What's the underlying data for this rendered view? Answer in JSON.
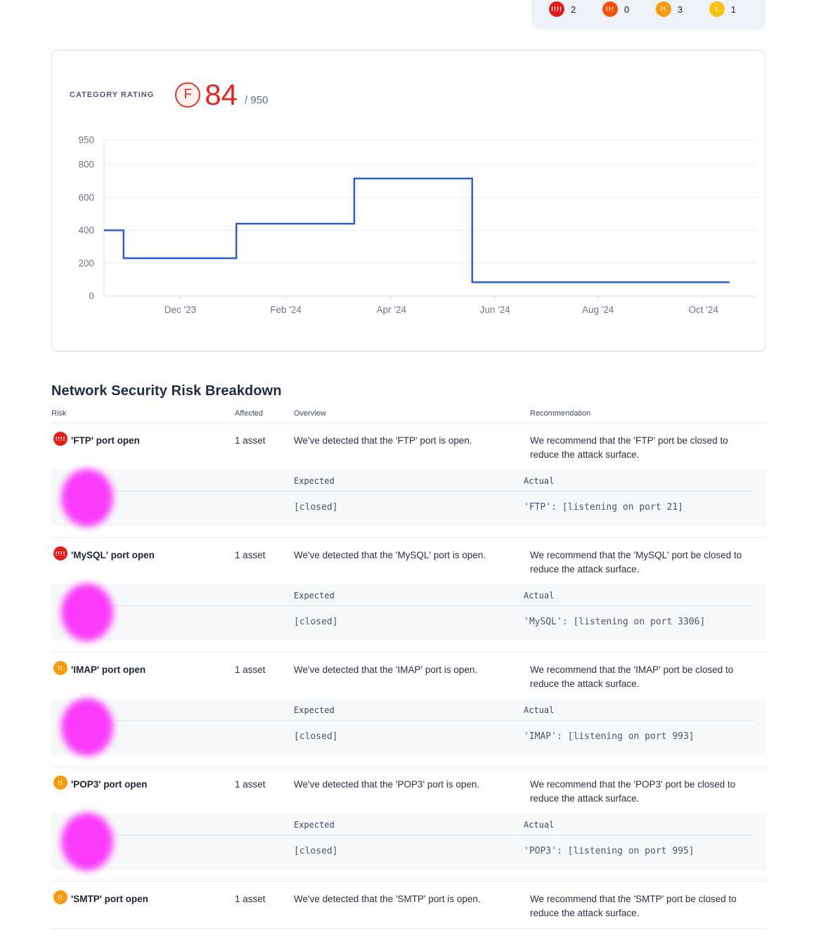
{
  "summary": {
    "badges": [
      {
        "severity": "critical",
        "glyph": "!!!!",
        "count": "2",
        "color": "#e11d1c"
      },
      {
        "severity": "high",
        "glyph": "!!!",
        "count": "0",
        "color": "#f4500b"
      },
      {
        "severity": "medium",
        "glyph": "!!",
        "count": "3",
        "color": "#f79c11"
      },
      {
        "severity": "low",
        "glyph": "!",
        "count": "1",
        "color": "#f6c411"
      }
    ]
  },
  "rating_card": {
    "label": "CATEGORY RATING",
    "grade": "F",
    "score": "84",
    "max": "/ 950"
  },
  "chart_data": {
    "type": "line",
    "title": "Category rating over time",
    "line_color": "#2a5ed0",
    "ylim": [
      0,
      950
    ],
    "yticks": [
      0,
      200,
      400,
      600,
      800,
      950
    ],
    "xticks": [
      {
        "label": "Dec '23",
        "pos": 0.117
      },
      {
        "label": "Feb '24",
        "pos": 0.279
      },
      {
        "label": "Apr '24",
        "pos": 0.441
      },
      {
        "label": "Jun '24",
        "pos": 0.6
      },
      {
        "label": "Aug '24",
        "pos": 0.758
      },
      {
        "label": "Oct '24",
        "pos": 0.92
      }
    ],
    "grid": true,
    "legend": false,
    "series": [
      {
        "name": "category rating",
        "points": [
          [
            0.0,
            400
          ],
          [
            0.03,
            400
          ],
          [
            0.03,
            230
          ],
          [
            0.203,
            230
          ],
          [
            0.203,
            440
          ],
          [
            0.384,
            440
          ],
          [
            0.384,
            715
          ],
          [
            0.565,
            715
          ],
          [
            0.565,
            84
          ],
          [
            0.96,
            84
          ]
        ]
      }
    ]
  },
  "breakdown": {
    "title": "Network Security Risk Breakdown",
    "columns": [
      "Risk",
      "Affected",
      "Overview",
      "Recommendation"
    ],
    "detail_columns": [
      "Expected",
      "Actual"
    ],
    "rows": [
      {
        "severity_glyph": "!!!!",
        "severity_color": "#e11d1c",
        "risk": "'FTP' port open",
        "affected": "1 asset",
        "overview": "We've detected that the 'FTP' port is open.",
        "recommendation": "We recommend that the 'FTP' port be closed to reduce the attack surface.",
        "expected": "[closed]",
        "actual": "'FTP': [listening on port 21]"
      },
      {
        "severity_glyph": "!!!!",
        "severity_color": "#e11d1c",
        "risk": "'MySQL' port open",
        "affected": "1 asset",
        "overview": "We've detected that the 'MySQL' port is open.",
        "recommendation": "We recommend that the 'MySQL' port be closed to reduce the attack surface.",
        "expected": "[closed]",
        "actual": "'MySQL': [listening on port 3306]"
      },
      {
        "severity_glyph": "!!",
        "severity_color": "#f79c11",
        "risk": "'IMAP' port open",
        "affected": "1 asset",
        "overview": "We've detected that the 'IMAP' port is open.",
        "recommendation": "We recommend that the 'IMAP' port be closed to reduce the attack surface.",
        "expected": "[closed]",
        "actual": "'IMAP': [listening on port 993]"
      },
      {
        "severity_glyph": "!!",
        "severity_color": "#f79c11",
        "risk": "'POP3' port open",
        "affected": "1 asset",
        "overview": "We've detected that the 'POP3' port is open.",
        "recommendation": "We recommend that the 'POP3' port be closed to reduce the attack surface.",
        "expected": "[closed]",
        "actual": "'POP3': [listening on port 995]"
      },
      {
        "severity_glyph": "!!",
        "severity_color": "#f79c11",
        "risk": "'SMTP' port open",
        "affected": "1 asset",
        "overview": "We've detected that the 'SMTP' port is open.",
        "recommendation": "We recommend that the 'SMTP' port be closed to reduce the attack surface."
      }
    ]
  }
}
